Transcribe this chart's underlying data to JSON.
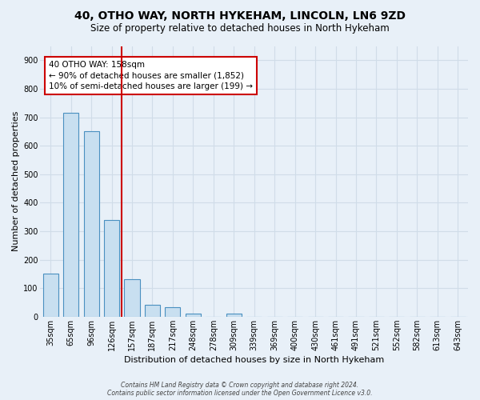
{
  "title": "40, OTHO WAY, NORTH HYKEHAM, LINCOLN, LN6 9ZD",
  "subtitle": "Size of property relative to detached houses in North Hykeham",
  "xlabel": "Distribution of detached houses by size in North Hykeham",
  "ylabel": "Number of detached properties",
  "categories": [
    "35sqm",
    "65sqm",
    "96sqm",
    "126sqm",
    "157sqm",
    "187sqm",
    "217sqm",
    "248sqm",
    "278sqm",
    "309sqm",
    "339sqm",
    "369sqm",
    "400sqm",
    "430sqm",
    "461sqm",
    "491sqm",
    "521sqm",
    "552sqm",
    "582sqm",
    "613sqm",
    "643sqm"
  ],
  "values": [
    150,
    715,
    650,
    340,
    130,
    42,
    32,
    12,
    0,
    10,
    0,
    0,
    0,
    0,
    0,
    0,
    0,
    0,
    0,
    0,
    0
  ],
  "bar_color": "#c8dff0",
  "bar_edge_color": "#4a90c0",
  "bar_width": 0.75,
  "vline_x_index": 4,
  "vline_color": "#cc0000",
  "annotation_line1": "40 OTHO WAY: 158sqm",
  "annotation_line2": "← 90% of detached houses are smaller (1,852)",
  "annotation_line3": "10% of semi-detached houses are larger (199) →",
  "annotation_box_facecolor": "#ffffff",
  "annotation_box_edgecolor": "#cc0000",
  "ylim": [
    0,
    950
  ],
  "yticks": [
    0,
    100,
    200,
    300,
    400,
    500,
    600,
    700,
    800,
    900
  ],
  "grid_color": "#d0dce8",
  "background_color": "#e8f0f8",
  "title_fontsize": 10,
  "subtitle_fontsize": 8.5,
  "ylabel_fontsize": 8,
  "xlabel_fontsize": 8,
  "tick_fontsize": 7,
  "footer_line1": "Contains HM Land Registry data © Crown copyright and database right 2024.",
  "footer_line2": "Contains public sector information licensed under the Open Government Licence v3.0."
}
